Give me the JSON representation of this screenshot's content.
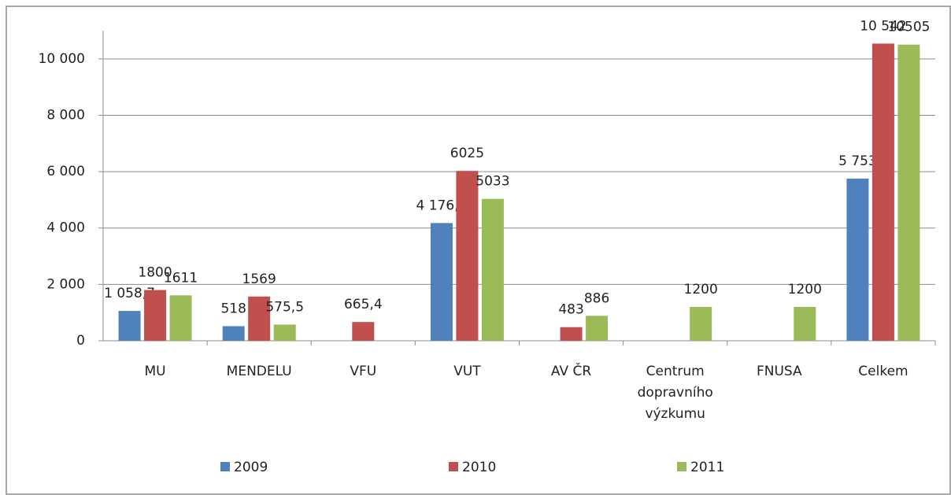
{
  "chart_data": {
    "type": "bar",
    "categories": [
      "MU",
      "MENDELU",
      "VFU",
      "VUT",
      "AV ČR",
      "Centrum dopravního výzkumu",
      "FNUSA",
      "Celkem"
    ],
    "series": [
      {
        "name": "2009",
        "color": "#4f81bd",
        "values": [
          1058.7,
          518,
          null,
          4176.5,
          null,
          null,
          null,
          5753
        ],
        "value_labels": [
          "1 058,7",
          "518",
          null,
          "4 176,5",
          null,
          null,
          null,
          "5 753"
        ]
      },
      {
        "name": "2010",
        "color": "#c0504d",
        "values": [
          1800,
          1569,
          665.4,
          6025,
          483,
          null,
          null,
          10542
        ],
        "value_labels": [
          "1800",
          "1569",
          "665,4",
          "6025",
          "483",
          null,
          null,
          "10 542"
        ]
      },
      {
        "name": "2011",
        "color": "#9bbb59",
        "values": [
          1611,
          575.5,
          null,
          5033,
          886,
          1200,
          1200,
          10505
        ],
        "value_labels": [
          "1611",
          "575,5",
          null,
          "5033",
          "886",
          "1200",
          "1200",
          "10505"
        ]
      }
    ],
    "ylim": [
      0,
      11000
    ],
    "yticks": [
      0,
      {
        "value": 2000,
        "label": "2 000"
      },
      {
        "value": 4000,
        "label": "4 000"
      },
      {
        "value": 6000,
        "label": "6 000"
      },
      {
        "value": 8000,
        "label": "8 000"
      },
      {
        "value": 10000,
        "label": "10 000"
      }
    ],
    "grid": true,
    "legend": "bottom"
  }
}
